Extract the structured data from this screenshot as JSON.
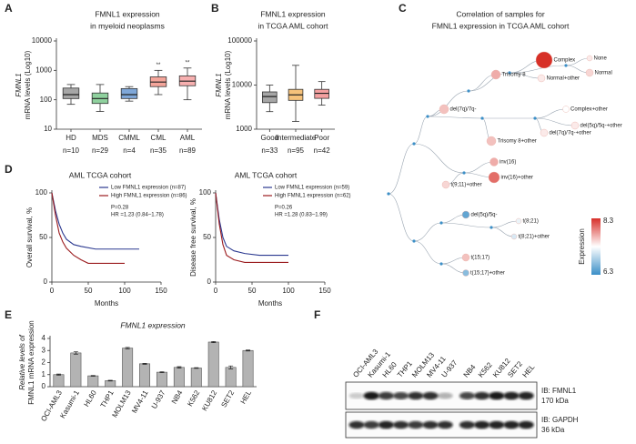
{
  "chart_data": [
    {
      "type": "box",
      "panel": "A",
      "title": [
        "FMNL1 expression",
        "in myeloid neoplasms"
      ],
      "ylabel": [
        "FMNL1",
        "mRNA levels (Log10)"
      ],
      "log_scale": true,
      "categories": [
        "HD",
        "MDS",
        "CMML",
        "CML",
        "AML"
      ],
      "n_labels": [
        "n=10",
        "n=29",
        "n=4",
        "n=35",
        "n=89"
      ],
      "whisker_low": [
        70,
        40,
        90,
        150,
        100
      ],
      "q1": [
        110,
        75,
        110,
        280,
        300
      ],
      "median": [
        150,
        110,
        150,
        400,
        430
      ],
      "q3": [
        250,
        170,
        240,
        600,
        650
      ],
      "whisker_high": [
        330,
        330,
        280,
        1000,
        1200
      ],
      "colors": [
        "#a6a6a6",
        "#8fd19e",
        "#7fa7d8",
        "#f4a59a",
        "#f7b0b0"
      ],
      "annotations": [
        null,
        null,
        null,
        "**",
        "**"
      ],
      "ylim": [
        10,
        10000
      ],
      "yticks": [
        10,
        100,
        1000,
        10000
      ]
    },
    {
      "type": "box",
      "panel": "B",
      "title": [
        "FMNL1 expression",
        "in TCGA AML cohort"
      ],
      "ylabel": [
        "FMNL1",
        "mRNA levels (Log10)"
      ],
      "log_scale": true,
      "categories": [
        "Good",
        "Intermediate",
        "Poor"
      ],
      "n_labels": [
        "n=33",
        "n=95",
        "n=42"
      ],
      "whisker_low": [
        2500,
        1500,
        3500
      ],
      "q1": [
        4000,
        4500,
        5000
      ],
      "median": [
        5500,
        6000,
        6500
      ],
      "q3": [
        7000,
        8000,
        8000
      ],
      "whisker_high": [
        10000,
        28000,
        12000
      ],
      "colors": [
        "#a6a6a6",
        "#f6c27b",
        "#f4a0a0"
      ],
      "ylim": [
        1000,
        100000
      ],
      "yticks": [
        1000,
        10000,
        100000
      ]
    },
    {
      "type": "tree",
      "panel": "C",
      "title": [
        "Correlation of samples for",
        "FMNL1 expression in TCGA AML cohort"
      ],
      "colorbar_label": "Expression",
      "clim": [
        6.3,
        8.3
      ],
      "nodes": [
        {
          "label": "Complex",
          "value": 8.3
        },
        {
          "label": "None",
          "value": 7.4
        },
        {
          "label": "Normal",
          "value": 7.5
        },
        {
          "label": "Trisomy 8",
          "value": 7.7
        },
        {
          "label": "Normal+other",
          "value": 7.4
        },
        {
          "label": "del(7q)/7q-",
          "value": 7.6
        },
        {
          "label": "Complex+other",
          "value": 7.3
        },
        {
          "label": "del(5q)/5q-+other",
          "value": 7.4
        },
        {
          "label": "del(7q)/7q-+other",
          "value": 7.4
        },
        {
          "label": "Trisomy 8+other",
          "value": 7.6
        },
        {
          "label": "inv(16)",
          "value": 7.7
        },
        {
          "label": "inv(16)+other",
          "value": 8.0
        },
        {
          "label": "t(9;11)+other",
          "value": 7.5
        },
        {
          "label": "del(5q)/5q-",
          "value": 6.5
        },
        {
          "label": "t(8;21)",
          "value": 7.2
        },
        {
          "label": "t(8;21)+other",
          "value": 7.1
        },
        {
          "label": "t(15;17)",
          "value": 7.6
        },
        {
          "label": "t(15;17)+other",
          "value": 6.7
        }
      ]
    },
    {
      "type": "line",
      "panel": "D",
      "title": "AML TCGA cohort",
      "xlabel": "Months",
      "ylabel": "Overall survival, %",
      "xlim": [
        0,
        150
      ],
      "xticks": [
        0,
        50,
        100,
        150
      ],
      "ylim": [
        0,
        100
      ],
      "yticks": [
        0,
        50,
        100
      ],
      "annotations": [
        "P=0.28",
        "HR =1.23 (0.84–1.78)"
      ],
      "series": [
        {
          "name": "Low FMNL1 expression (n=87)",
          "color": "#2b3990",
          "x": [
            0,
            5,
            10,
            15,
            20,
            30,
            40,
            60,
            120
          ],
          "values": [
            100,
            80,
            65,
            55,
            48,
            42,
            40,
            37,
            37
          ]
        },
        {
          "name": "High FMNL1 expression (n=86)",
          "color": "#9b1c1f",
          "x": [
            0,
            5,
            10,
            15,
            20,
            30,
            40,
            50,
            100
          ],
          "values": [
            100,
            75,
            55,
            45,
            38,
            30,
            25,
            21,
            21
          ]
        }
      ]
    },
    {
      "type": "line",
      "title": "AML TCGA cohort",
      "xlabel": "Months",
      "ylabel": "Disease free survival, %",
      "xlim": [
        0,
        150
      ],
      "xticks": [
        0,
        50,
        100,
        150
      ],
      "ylim": [
        0,
        100
      ],
      "yticks": [
        0,
        50,
        100
      ],
      "annotations": [
        "P=0.26",
        "HR =1.28 (0.83–1.99)"
      ],
      "series": [
        {
          "name": "Low FMNL1 expression (n=59)",
          "color": "#2b3990",
          "x": [
            0,
            5,
            10,
            15,
            25,
            40,
            60,
            100
          ],
          "values": [
            100,
            70,
            50,
            40,
            35,
            32,
            30,
            30
          ]
        },
        {
          "name": "High FMNL1 expression (n=62)",
          "color": "#9b1c1f",
          "x": [
            0,
            5,
            10,
            15,
            25,
            40,
            60,
            100
          ],
          "values": [
            100,
            65,
            42,
            30,
            25,
            22,
            22,
            22
          ]
        }
      ]
    },
    {
      "type": "bar",
      "panel": "E",
      "title": "FMNL1 expression",
      "ylabel": [
        "Relative levels of",
        "FMNL1 mRNA expression"
      ],
      "categories": [
        "OCI-AML3",
        "Kasumi-1",
        "HL60",
        "THP1",
        "MOLM13",
        "MV4-11",
        "U-937",
        "NB4",
        "K562",
        "KU812",
        "SET2",
        "HEL"
      ],
      "values": [
        1.0,
        2.8,
        0.9,
        0.5,
        3.2,
        1.9,
        1.2,
        1.6,
        1.55,
        3.7,
        1.6,
        3.0
      ],
      "errors": [
        0.05,
        0.1,
        0.03,
        0.03,
        0.06,
        0.04,
        0.04,
        0.06,
        0.03,
        0.05,
        0.12,
        0.04
      ],
      "color": "#b3b3b3",
      "ylim": [
        0,
        4
      ],
      "yticks": [
        0,
        1,
        2,
        3,
        4
      ]
    },
    {
      "type": "blot",
      "panel": "F",
      "lanes": [
        "OCI-AML3",
        "Kasumi-1",
        "HL60",
        "THP1",
        "MOLM13",
        "MV4-11",
        "U-937",
        "NB4",
        "K562",
        "KU812",
        "SET2",
        "HEL"
      ],
      "blots": [
        {
          "antibody": "IB: FMNL1",
          "size": "170 kDa"
        },
        {
          "antibody": "IB: GAPDH",
          "size": "36 kDa"
        }
      ]
    }
  ]
}
